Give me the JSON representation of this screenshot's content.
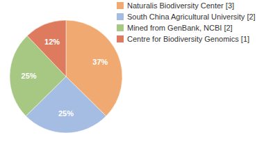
{
  "chart_data": {
    "type": "pie",
    "categories": [
      "Naturalis Biodiversity Center [3]",
      "South China Agricultural University [2]",
      "Mined from GenBank, NCBI [2]",
      "Centre for Biodiversity Genomics [1]"
    ],
    "values": [
      37,
      25,
      25,
      12
    ],
    "value_labels": [
      "37%",
      "25%",
      "25%",
      "12%"
    ],
    "colors": [
      "#f0a970",
      "#a5bde2",
      "#a6c882",
      "#de7b5e"
    ],
    "data_labels": true,
    "legend": "top-right"
  }
}
